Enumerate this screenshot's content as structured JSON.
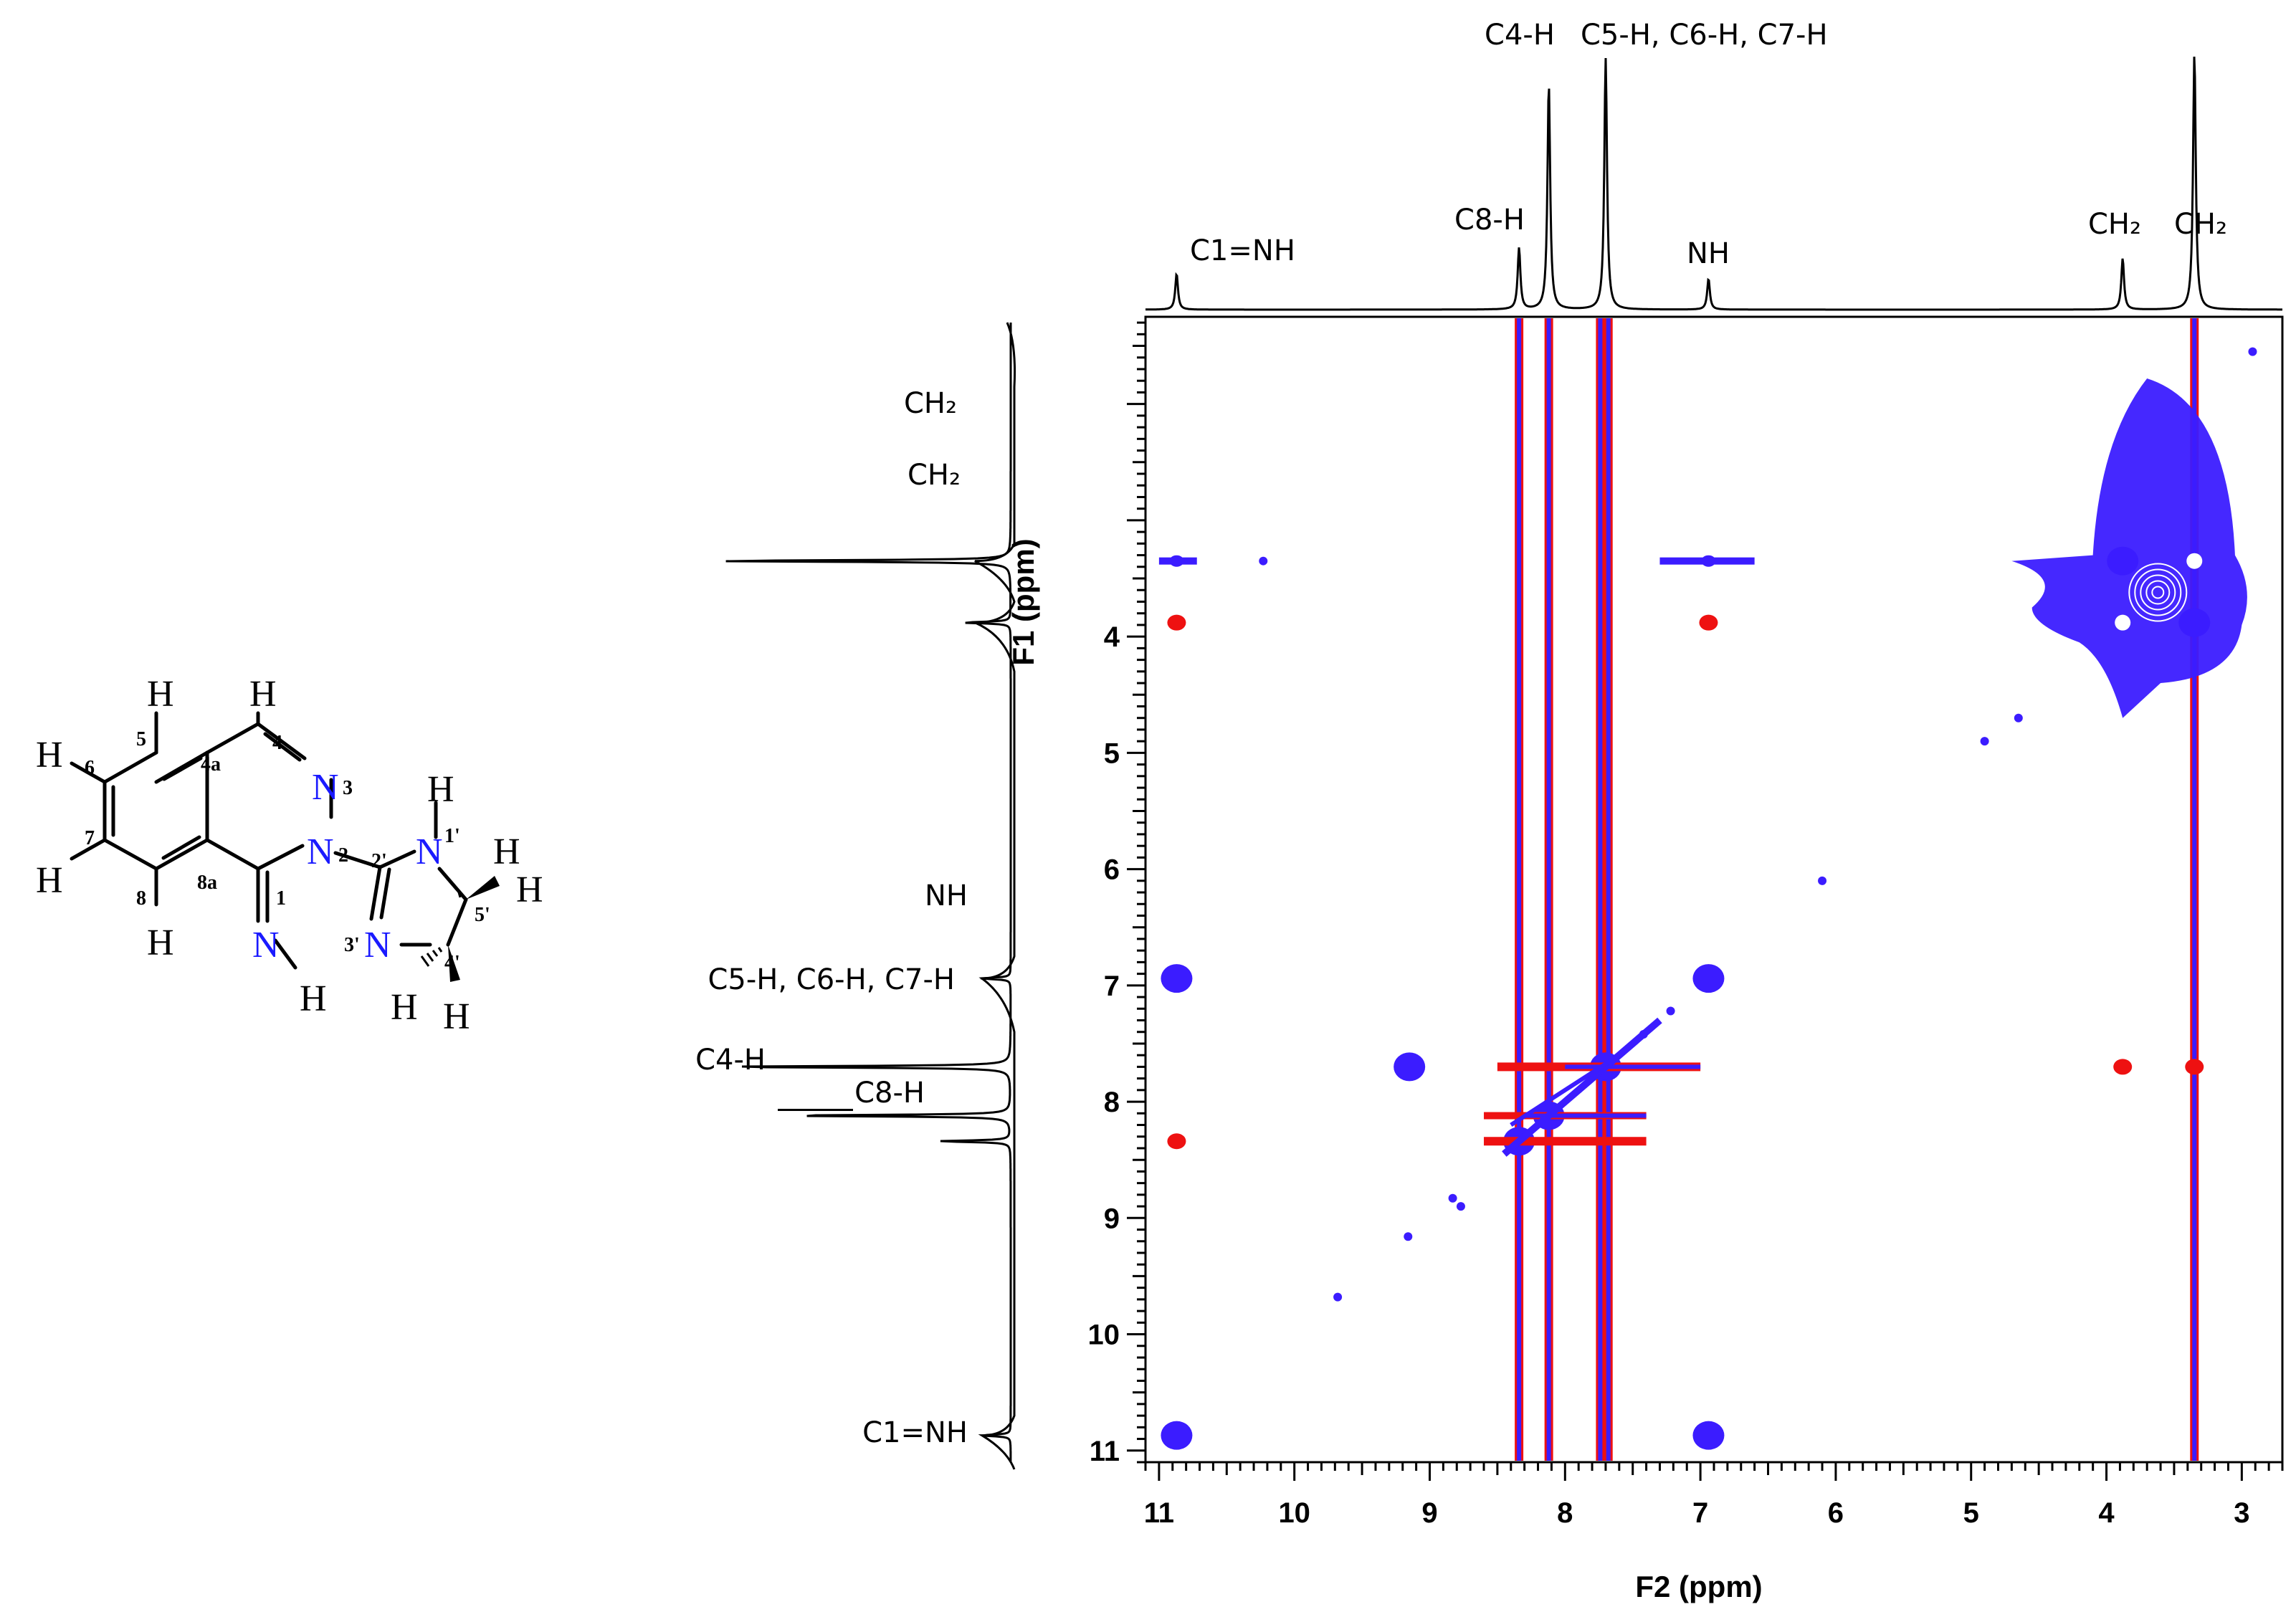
{
  "molecule": {
    "atoms": {
      "N1p": "N",
      "N2": "N",
      "N3": "N",
      "N3p": "N",
      "Nimine": "N",
      "H": "H"
    },
    "locants": [
      "1",
      "2",
      "3",
      "4",
      "4a",
      "5",
      "6",
      "7",
      "8",
      "8a",
      "1'",
      "2'",
      "3'",
      "4'",
      "5'"
    ],
    "colors": {
      "nitrogen": "#1a1aff",
      "bond": "#000000"
    }
  },
  "chart_data": {
    "type": "heatmap",
    "subtype": "2D NMR (homonuclear correlation) with 1D projections",
    "xlabel": "F2 (ppm)",
    "ylabel": "F1 (ppm)",
    "xlim": [
      11.1,
      2.7
    ],
    "ylim": [
      1.25,
      11.1
    ],
    "x_ticks": [
      11,
      10,
      9,
      8,
      7,
      6,
      5,
      4,
      3
    ],
    "y_ticks": [
      4,
      5,
      6,
      7,
      8,
      9,
      10,
      11
    ],
    "x_tick_labels": [
      "11",
      "10",
      "9",
      "8",
      "7",
      "6",
      "5",
      "4",
      "3"
    ],
    "y_tick_labels": [
      "4",
      "5",
      "6",
      "7",
      "8",
      "9",
      "10",
      "11"
    ],
    "colors": {
      "positive": "#3b1cff",
      "negative": "#ee1111",
      "spectrum": "#000000"
    },
    "top_spectrum": {
      "peaks": [
        {
          "ppm": 10.87,
          "height": 0.14,
          "label": "C1=NH"
        },
        {
          "ppm": 8.34,
          "height": 0.24,
          "label": "C8-H"
        },
        {
          "ppm": 8.12,
          "height": 0.88,
          "label": "C4-H"
        },
        {
          "ppm": 7.7,
          "height": 0.98,
          "label": "C5-H, C6-H, C7-H"
        },
        {
          "ppm": 6.94,
          "height": 0.12,
          "label": "NH"
        },
        {
          "ppm": 3.88,
          "height": 0.2,
          "label": "CH₂"
        },
        {
          "ppm": 3.35,
          "height": 1.0,
          "label": "CH₂"
        }
      ]
    },
    "left_spectrum": {
      "peaks": [
        {
          "ppm": 3.35,
          "height": 1.0,
          "label": "CH₂"
        },
        {
          "ppm": 3.88,
          "height": 0.16,
          "label": "CH₂"
        },
        {
          "ppm": 6.94,
          "height": 0.1,
          "label": "NH"
        },
        {
          "ppm": 7.7,
          "height": 0.98,
          "label": "C5-H, C6-H, C7-H"
        },
        {
          "ppm": 8.12,
          "height": 0.76,
          "label": "C4-H"
        },
        {
          "ppm": 8.34,
          "height": 0.24,
          "label": "C8-H"
        },
        {
          "ppm": 10.87,
          "height": 0.1,
          "label": "C1=NH"
        }
      ]
    },
    "diagonal_peaks": [
      {
        "f2": 10.87,
        "f1": 10.87,
        "sign": "positive"
      },
      {
        "f2": 6.94,
        "f1": 6.94,
        "sign": "positive"
      },
      {
        "f2": 8.34,
        "f1": 8.34,
        "sign": "positive"
      },
      {
        "f2": 8.12,
        "f1": 8.12,
        "sign": "positive"
      },
      {
        "f2": 7.7,
        "f1": 7.7,
        "sign": "positive"
      },
      {
        "f2": 3.88,
        "f1": 3.88,
        "sign": "positive"
      },
      {
        "f2": 3.35,
        "f1": 3.35,
        "sign": "positive"
      }
    ],
    "cross_peaks": [
      {
        "f2": 10.87,
        "f1": 6.94,
        "sign": "positive"
      },
      {
        "f2": 6.94,
        "f1": 10.87,
        "sign": "positive"
      },
      {
        "f2": 10.87,
        "f1": 3.88,
        "sign": "negative"
      },
      {
        "f2": 6.94,
        "f1": 3.88,
        "sign": "negative"
      },
      {
        "f2": 10.87,
        "f1": 3.35,
        "sign": "positive"
      },
      {
        "f2": 6.94,
        "f1": 3.35,
        "sign": "positive"
      },
      {
        "f2": 3.88,
        "f1": 3.35,
        "sign": "positive"
      },
      {
        "f2": 3.35,
        "f1": 3.88,
        "sign": "positive"
      },
      {
        "f2": 9.15,
        "f1": 7.7,
        "sign": "positive"
      },
      {
        "f2": 10.87,
        "f1": 8.34,
        "sign": "negative"
      },
      {
        "f2": 3.88,
        "f1": 7.7,
        "sign": "negative"
      },
      {
        "f2": 3.35,
        "f1": 7.7,
        "sign": "negative"
      }
    ],
    "t1_noise_columns_ppm": [
      8.34,
      8.12,
      7.74,
      7.68,
      3.35
    ],
    "scatter_points": [
      {
        "f2": 10.23,
        "f1": 3.35
      },
      {
        "f2": 9.68,
        "f1": 9.68
      },
      {
        "f2": 9.16,
        "f1": 9.16
      },
      {
        "f2": 8.83,
        "f1": 8.83
      },
      {
        "f2": 8.77,
        "f1": 8.9
      },
      {
        "f2": 6.1,
        "f1": 6.1
      },
      {
        "f2": 4.9,
        "f1": 4.9
      },
      {
        "f2": 4.65,
        "f1": 4.7
      },
      {
        "f2": 2.92,
        "f1": 1.55
      },
      {
        "f2": 7.22,
        "f1": 7.22
      },
      {
        "f2": 7.42,
        "f1": 7.42
      }
    ]
  }
}
